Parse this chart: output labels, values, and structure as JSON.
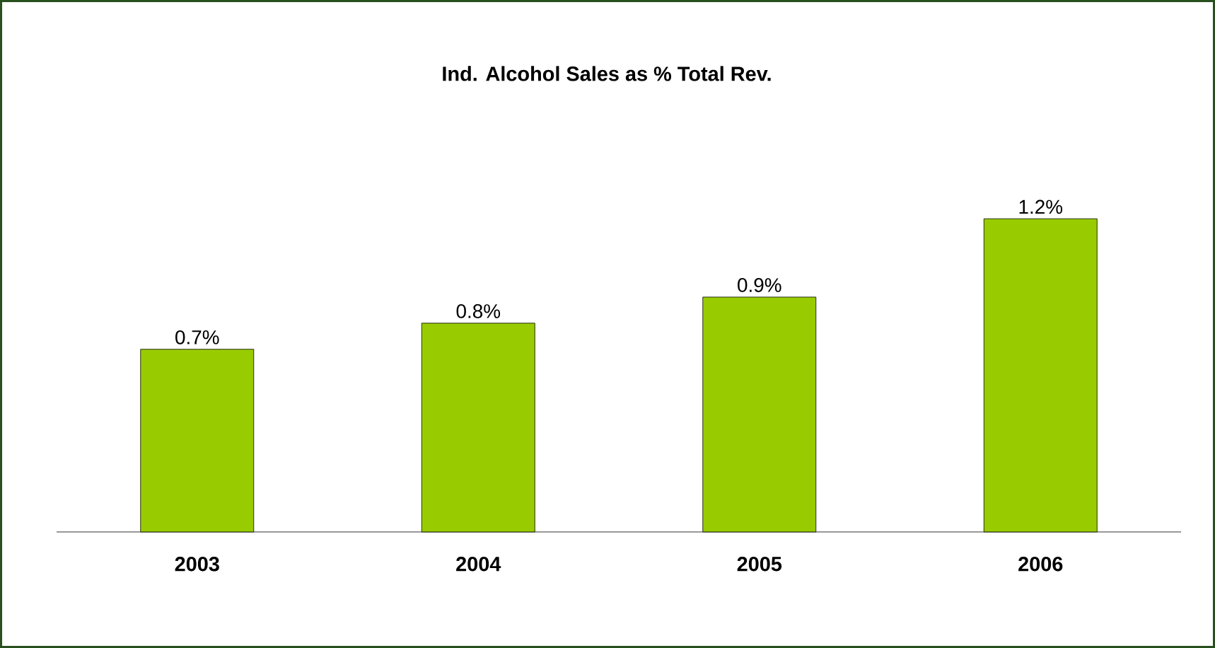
{
  "chart_data": {
    "type": "bar",
    "title": "Ind. Alcohol Sales as % Total Rev.",
    "categories": [
      "2003",
      "2004",
      "2005",
      "2006"
    ],
    "values": [
      0.7,
      0.8,
      0.9,
      1.2
    ],
    "value_labels": [
      "0.7%",
      "0.8%",
      "0.9%",
      "1.2%"
    ],
    "color": "#99cc00"
  }
}
